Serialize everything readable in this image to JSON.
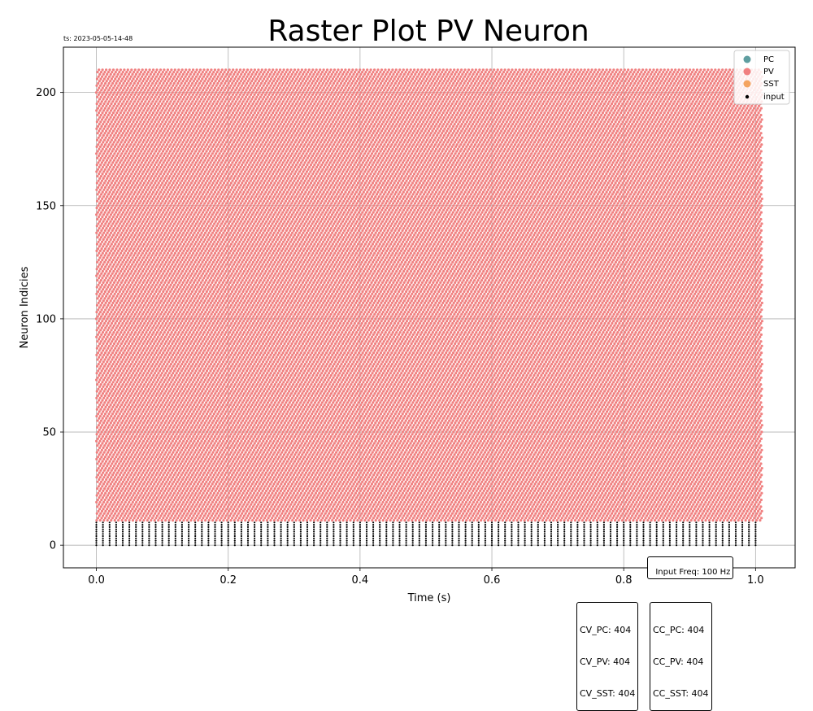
{
  "chart_data": {
    "type": "scatter",
    "title": "Raster Plot PV Neuron",
    "xlabel": "Time (s)",
    "ylabel": "Neuron Indicies",
    "xlim": [
      -0.05,
      1.06
    ],
    "ylim": [
      -10,
      220
    ],
    "xticks": [
      0.0,
      0.2,
      0.4,
      0.6,
      0.8,
      1.0
    ],
    "xtick_labels": [
      "0.0",
      "0.2",
      "0.4",
      "0.6",
      "0.8",
      "1.0"
    ],
    "yticks": [
      0,
      50,
      100,
      150,
      200
    ],
    "ytick_labels": [
      "0",
      "50",
      "100",
      "150",
      "200"
    ],
    "grid": true,
    "legend_position": "top-right",
    "series": [
      {
        "name": "PC",
        "color": "#5f9ea0",
        "neuron_range": null,
        "marker": "circle"
      },
      {
        "name": "PV",
        "color": "#f08080",
        "neuron_range": [
          11,
          210
        ],
        "time_range": [
          0.0,
          1.01
        ],
        "marker": "circle"
      },
      {
        "name": "SST",
        "color": "#f4a460",
        "neuron_range": null,
        "marker": "circle"
      },
      {
        "name": "input",
        "color": "#000000",
        "neuron_range": [
          0,
          10
        ],
        "time_range": [
          0.0,
          1.0
        ],
        "rate_hz": 100,
        "marker": "circle"
      }
    ]
  },
  "timestamp": "ts: 2023-05-05-14-48",
  "input_freq_label": "Input Freq: 100 Hz",
  "cv_box": [
    "CV_PC: 404",
    "CV_PV: 404",
    "CV_SST: 404"
  ],
  "cc_box": [
    "CC_PC: 404",
    "CC_PV: 404",
    "CC_SST: 404"
  ]
}
